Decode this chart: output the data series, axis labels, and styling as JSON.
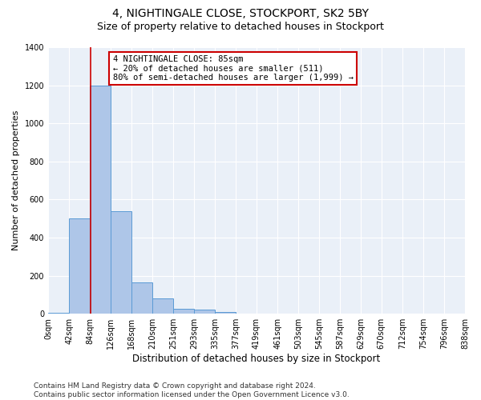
{
  "title1": "4, NIGHTINGALE CLOSE, STOCKPORT, SK2 5BY",
  "title2": "Size of property relative to detached houses in Stockport",
  "xlabel": "Distribution of detached houses by size in Stockport",
  "ylabel": "Number of detached properties",
  "footnote": "Contains HM Land Registry data © Crown copyright and database right 2024.\nContains public sector information licensed under the Open Government Licence v3.0.",
  "bar_values": [
    5,
    500,
    1200,
    540,
    165,
    80,
    28,
    22,
    10,
    0,
    0,
    0,
    0,
    0,
    0,
    0,
    0,
    0,
    0,
    0
  ],
  "bin_labels": [
    "0sqm",
    "42sqm",
    "84sqm",
    "126sqm",
    "168sqm",
    "210sqm",
    "251sqm",
    "293sqm",
    "335sqm",
    "377sqm",
    "419sqm",
    "461sqm",
    "503sqm",
    "545sqm",
    "587sqm",
    "629sqm",
    "670sqm",
    "712sqm",
    "754sqm",
    "796sqm",
    "838sqm"
  ],
  "bin_edges": [
    0,
    42,
    84,
    126,
    168,
    210,
    251,
    293,
    335,
    377,
    419,
    461,
    503,
    545,
    587,
    629,
    670,
    712,
    754,
    796,
    838
  ],
  "bar_color": "#aec6e8",
  "bar_edge_color": "#5b9bd5",
  "background_color": "#eaf0f8",
  "property_line_x": 85,
  "annotation_text": "4 NIGHTINGALE CLOSE: 85sqm\n← 20% of detached houses are smaller (511)\n80% of semi-detached houses are larger (1,999) →",
  "annotation_box_color": "#ffffff",
  "annotation_box_edgecolor": "#cc0000",
  "vline_color": "#cc0000",
  "ylim": [
    0,
    1400
  ],
  "yticks": [
    0,
    200,
    400,
    600,
    800,
    1000,
    1200,
    1400
  ],
  "title1_fontsize": 10,
  "title2_fontsize": 9,
  "xlabel_fontsize": 8.5,
  "ylabel_fontsize": 8,
  "tick_fontsize": 7,
  "footnote_fontsize": 6.5,
  "annotation_fontsize": 7.5
}
